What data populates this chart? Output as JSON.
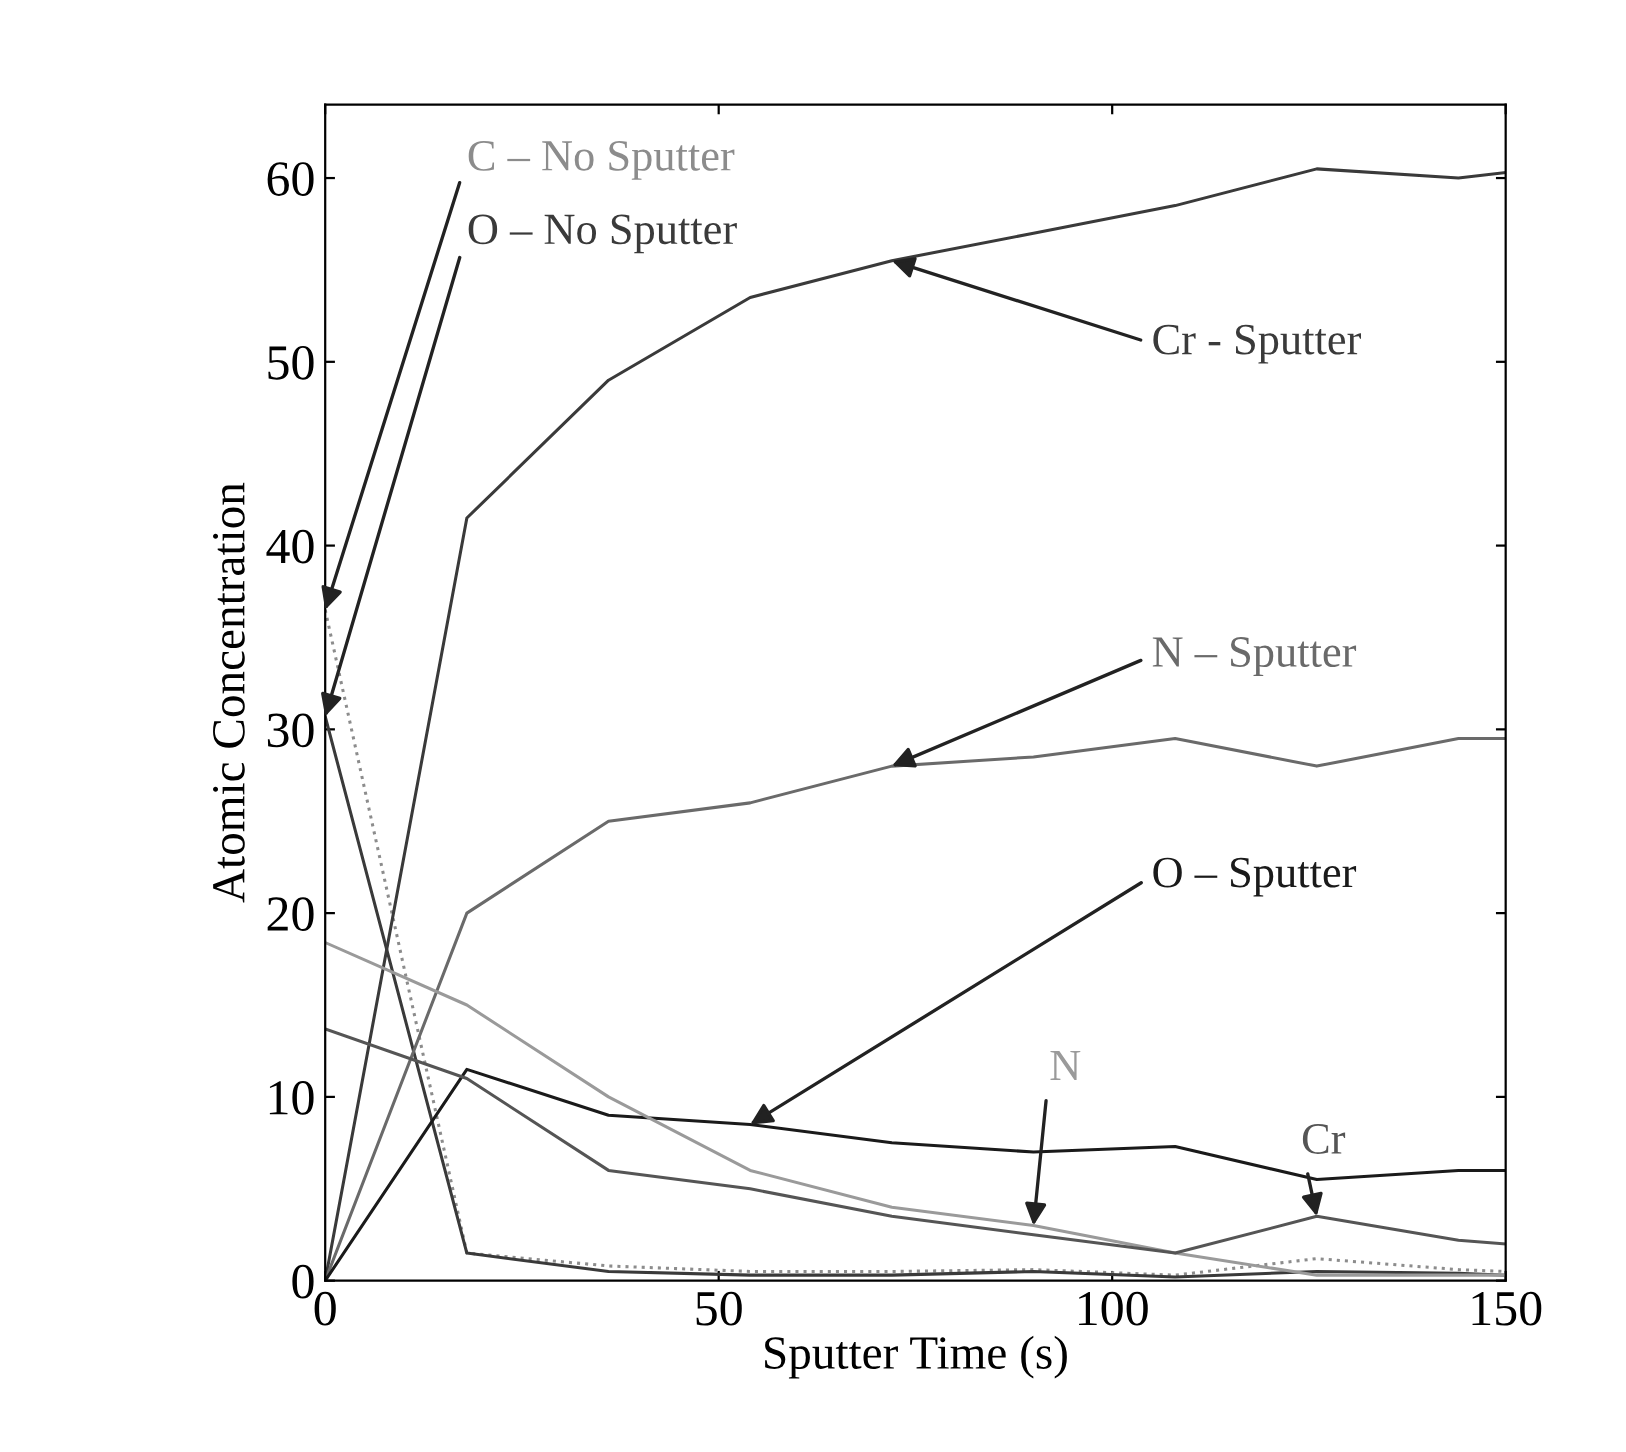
{
  "chart_data": {
    "type": "line",
    "xlabel": "Sputter Time (s)",
    "ylabel": "Atomic Concentration",
    "xlim": [
      0,
      150
    ],
    "xticks": [
      0,
      50,
      100,
      150
    ],
    "ylim": [
      0,
      64
    ],
    "yticks": [
      0,
      10,
      20,
      30,
      40,
      50,
      60
    ],
    "x": [
      0,
      18,
      36,
      54,
      72,
      90,
      108,
      126,
      144,
      150
    ],
    "grid": false,
    "legend": false,
    "marker": "none",
    "series": [
      {
        "name": "C – No Sputter",
        "color": "#8c8c8c",
        "line_style": "dotted",
        "values": [
          36.5,
          1.5,
          0.8,
          0.5,
          0.5,
          0.6,
          0.3,
          1.2,
          0.6,
          0.5
        ]
      },
      {
        "name": "O – No Sputter",
        "color": "#3a3a3a",
        "values": [
          30.7,
          1.5,
          0.5,
          0.3,
          0.3,
          0.5,
          0.2,
          0.5,
          0.4,
          0.3
        ]
      },
      {
        "name": "Cr - Sputter",
        "color": "#3a3a3a",
        "values": [
          0,
          41.5,
          49,
          53.5,
          55.5,
          57,
          58.5,
          60.5,
          60,
          60.3
        ]
      },
      {
        "name": "N – Sputter",
        "color": "#6a6a6a",
        "values": [
          0,
          20,
          25,
          26,
          28,
          28.5,
          29.5,
          28,
          29.5,
          29.5
        ]
      },
      {
        "name": "O – Sputter",
        "color": "#1a1a1a",
        "values": [
          0,
          11.5,
          9,
          8.5,
          7.5,
          7,
          7.3,
          5.5,
          6,
          6
        ]
      },
      {
        "name": "N",
        "color": "#9a9a9a",
        "values": [
          18.4,
          15,
          10,
          6,
          4,
          3,
          1.5,
          0.3,
          0.3,
          0.3
        ]
      },
      {
        "name": "Cr",
        "color": "#555555",
        "values": [
          13.7,
          11,
          6,
          5,
          3.5,
          2.5,
          1.5,
          3.5,
          2.2,
          2
        ]
      }
    ]
  }
}
